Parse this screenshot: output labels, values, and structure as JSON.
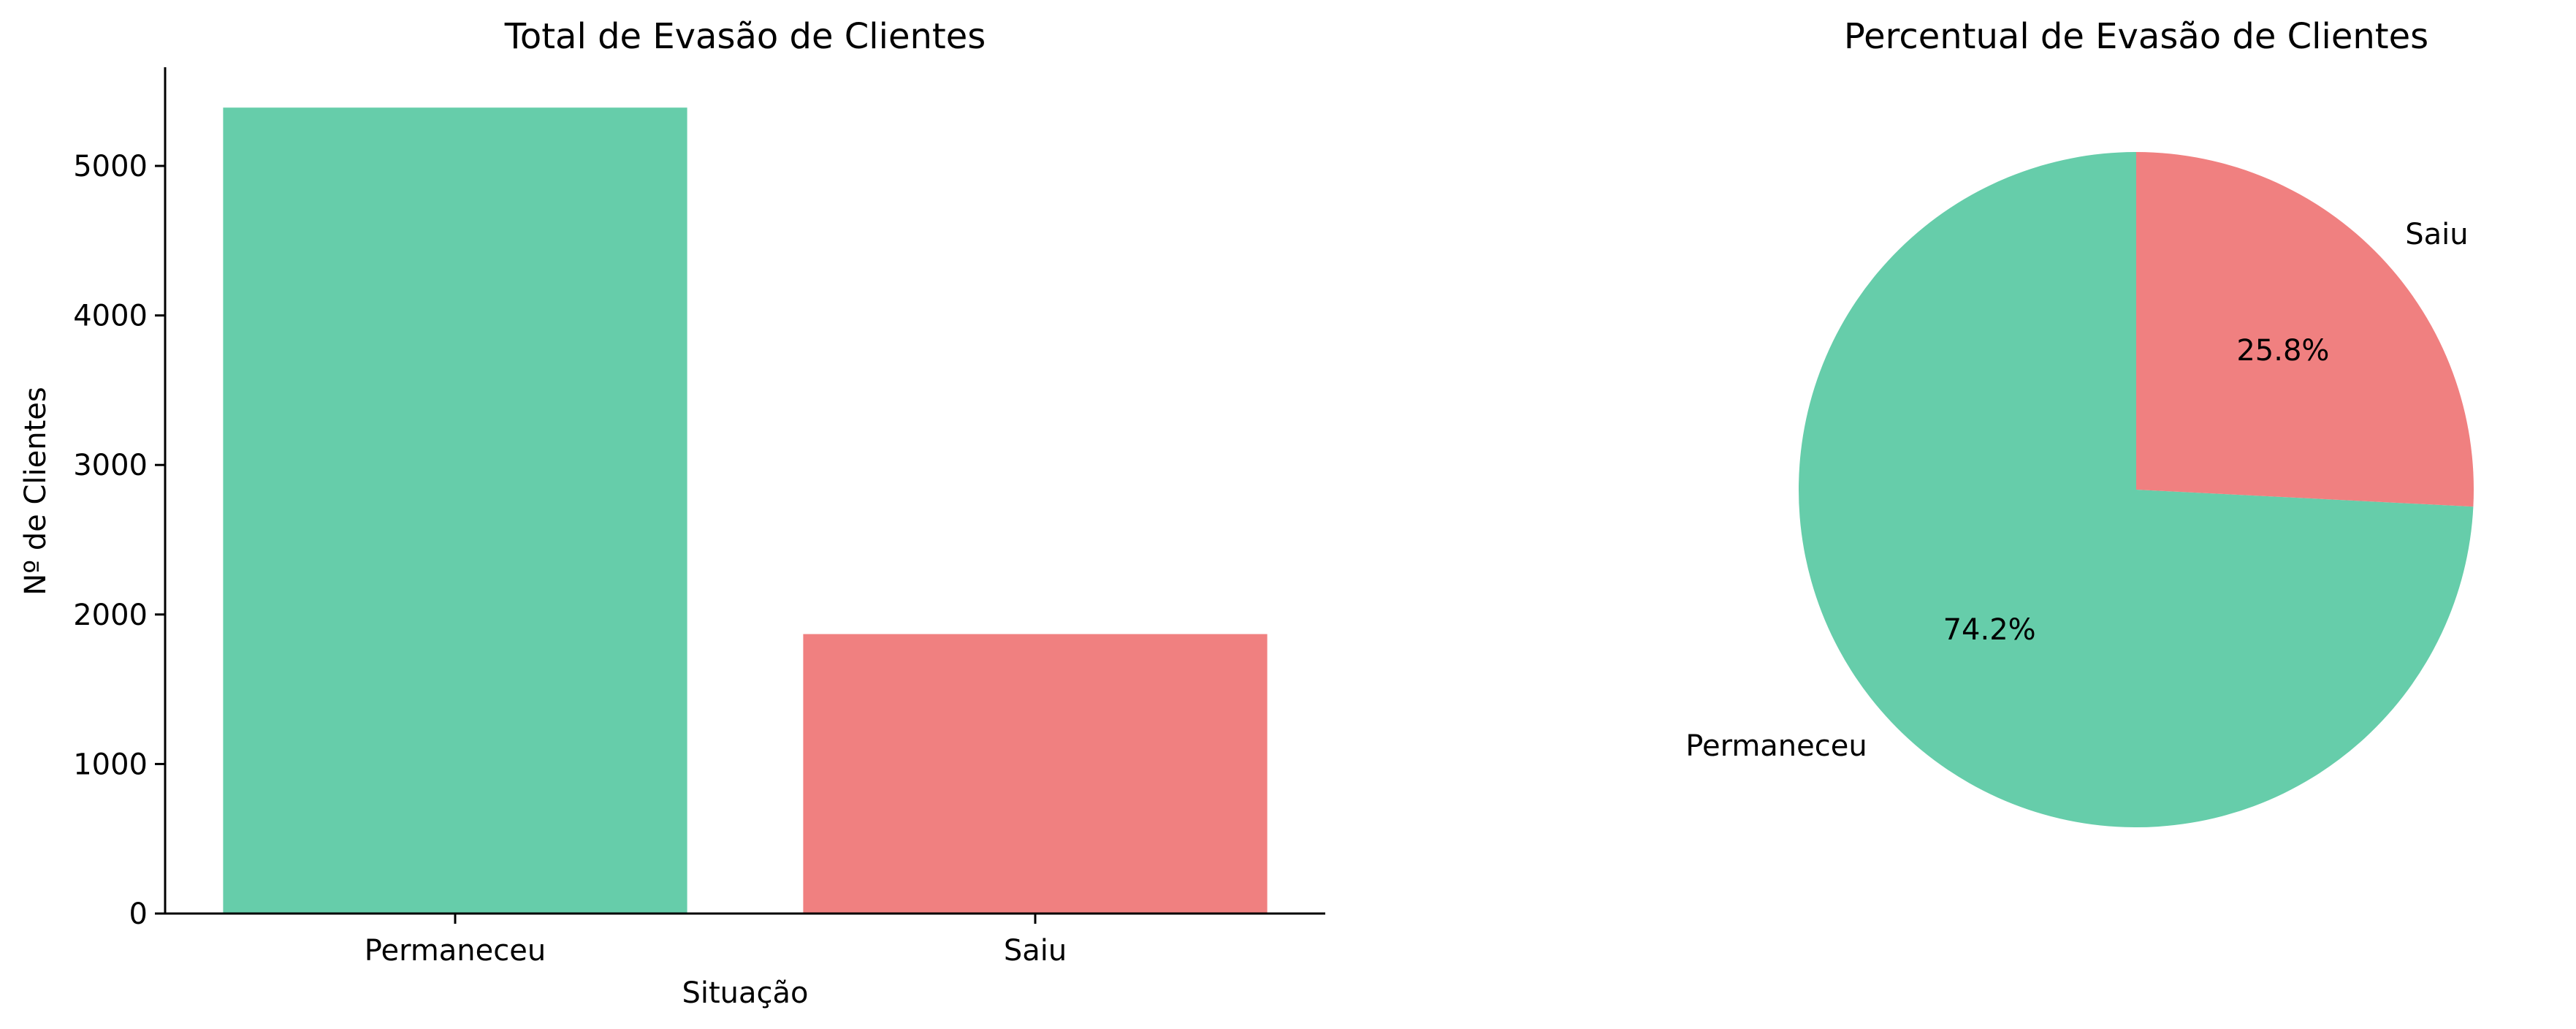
{
  "colors": {
    "permaneceu": "#66cdaa",
    "saiu": "#f08080",
    "axis": "#000000"
  },
  "chart_data": [
    {
      "type": "bar",
      "title": "Total de Evasão de Clientes",
      "xlabel": "Situação",
      "ylabel": "Nº de Clientes",
      "categories": [
        "Permaneceu",
        "Saiu"
      ],
      "values": [
        5390,
        1869
      ],
      "ylim": [
        0,
        5660
      ],
      "yticks": [
        0,
        1000,
        2000,
        3000,
        4000,
        5000
      ],
      "ytick_labels": [
        "0",
        "1000",
        "2000",
        "3000",
        "4000",
        "5000"
      ],
      "grid": false
    },
    {
      "type": "pie",
      "title": "Percentual de Evasão de Clientes",
      "labels": [
        "Permaneceu",
        "Saiu"
      ],
      "values": [
        74.2,
        25.8
      ],
      "pct_labels": [
        "74.2%",
        "25.8%"
      ],
      "start_angle": 90
    }
  ]
}
